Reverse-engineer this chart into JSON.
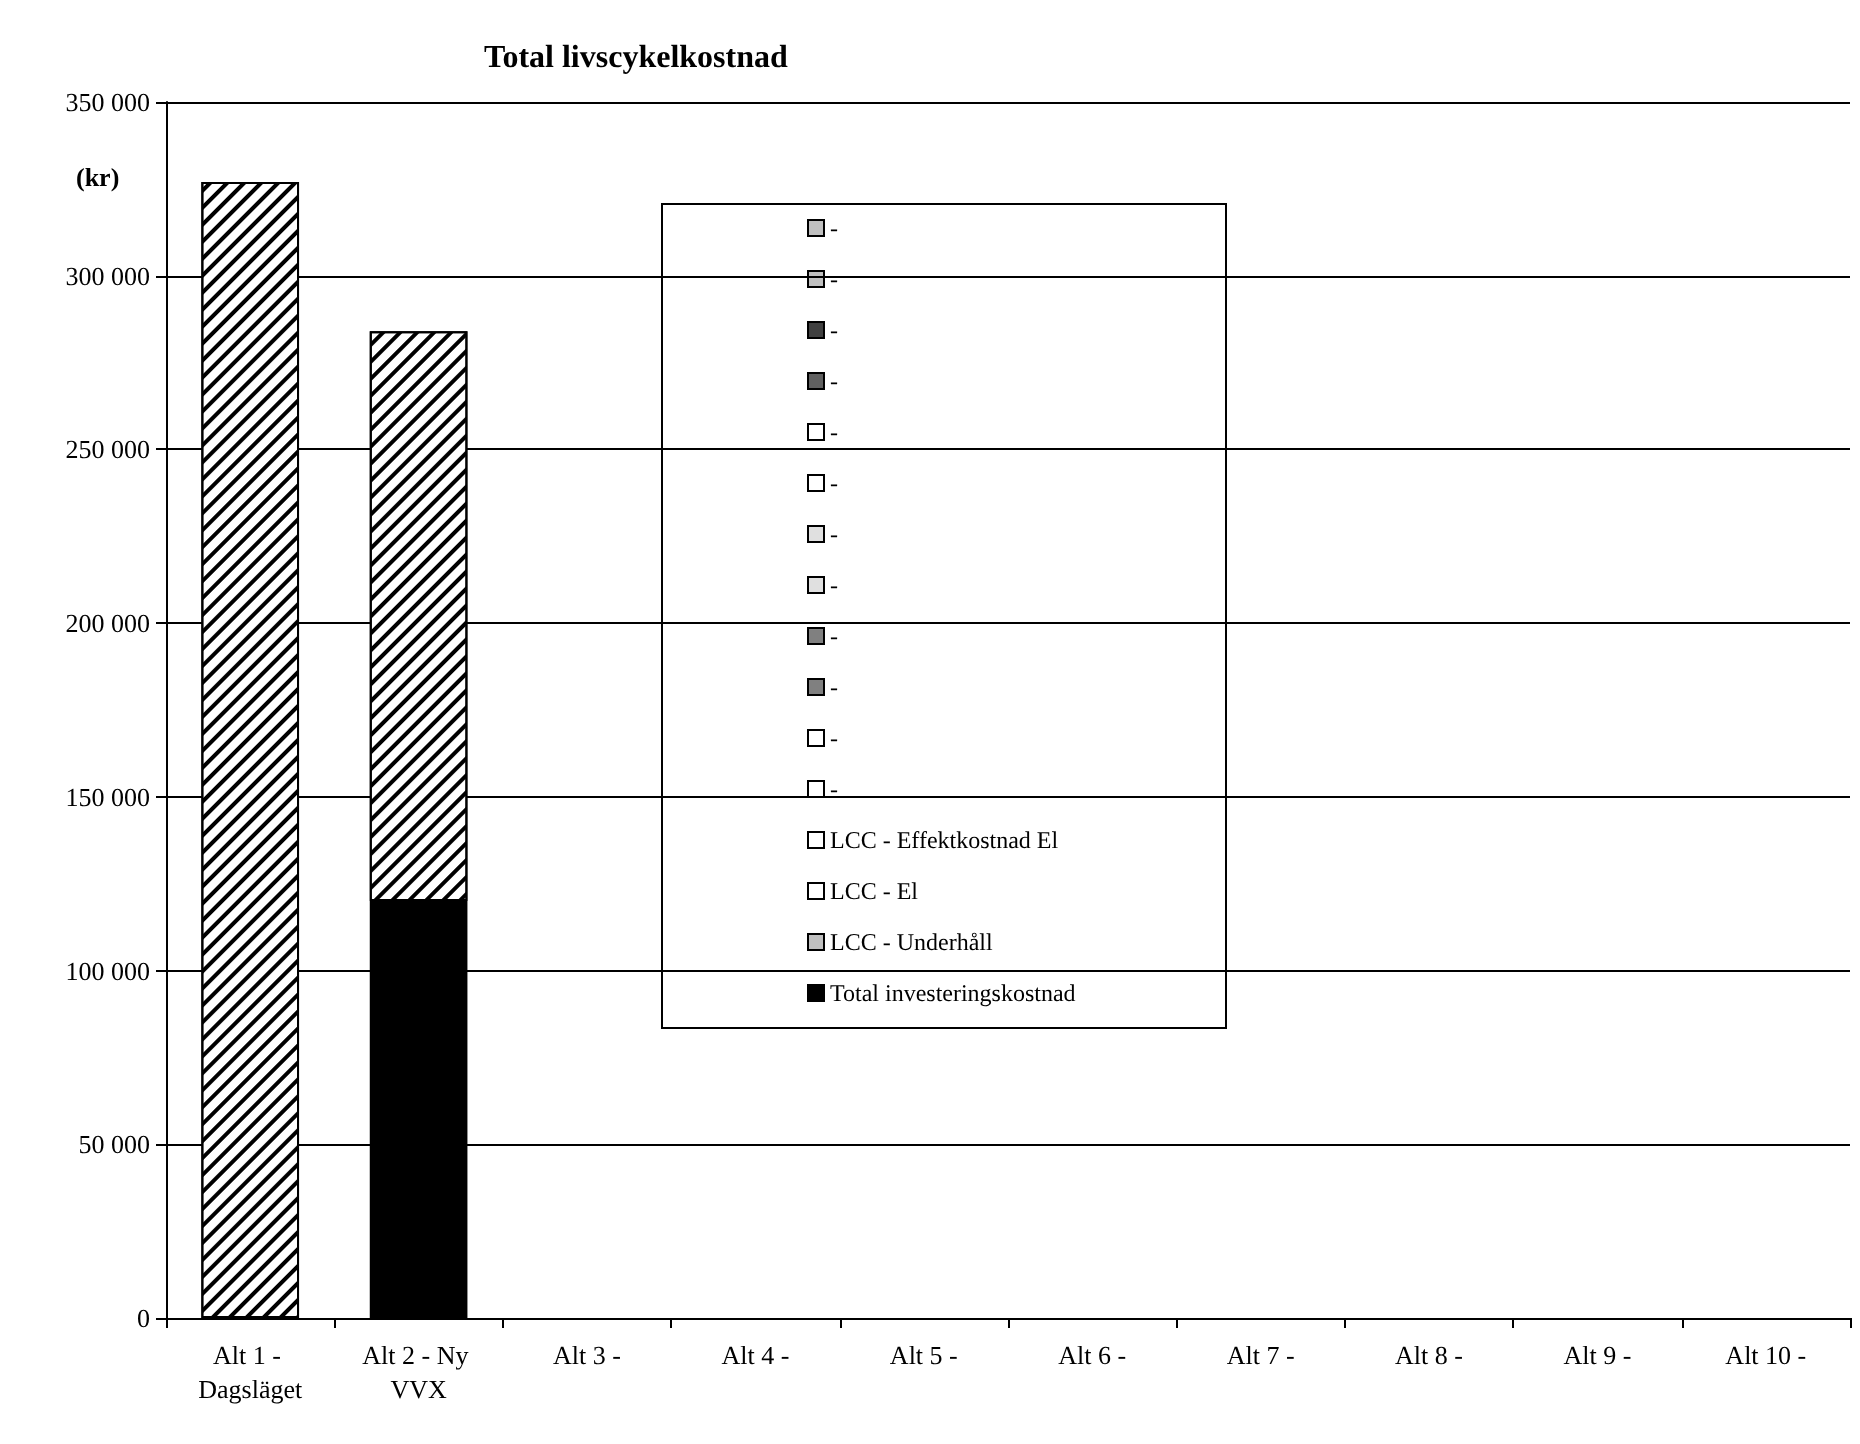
{
  "chart_data": {
    "type": "bar",
    "title": "Total livscykelkostnad",
    "ylabel": "(kr)",
    "stacked": true,
    "categories": [
      "Alt 1 - Dagsläget",
      "Alt 2 - Ny VVX",
      "Alt 3 -",
      "Alt 4 -",
      "Alt 5 -",
      "Alt 6 -",
      "Alt 7 -",
      "Alt 8 -",
      "Alt 9 -",
      "Alt 10 -"
    ],
    "series": [
      {
        "name": "Total investeringskostnad",
        "color": "#000000",
        "values": [
          0,
          120000,
          0,
          0,
          0,
          0,
          0,
          0,
          0,
          0
        ]
      },
      {
        "name": "LCC - Underhåll",
        "color": "#c0c0c0",
        "values": [
          0,
          0,
          0,
          0,
          0,
          0,
          0,
          0,
          0,
          0
        ]
      },
      {
        "name": "LCC - El",
        "color": "#ffffff",
        "values": [
          327000,
          164000,
          0,
          0,
          0,
          0,
          0,
          0,
          0,
          0
        ]
      },
      {
        "name": "LCC - Effektkostnad El",
        "color": "#ffffff",
        "values": [
          0,
          0,
          0,
          0,
          0,
          0,
          0,
          0,
          0,
          0
        ]
      },
      {
        "name": "-",
        "color": "#ffffff",
        "values": [
          0,
          0,
          0,
          0,
          0,
          0,
          0,
          0,
          0,
          0
        ]
      },
      {
        "name": "-",
        "color": "#ffffff",
        "values": [
          0,
          0,
          0,
          0,
          0,
          0,
          0,
          0,
          0,
          0
        ]
      },
      {
        "name": "-",
        "color": "#808080",
        "values": [
          0,
          0,
          0,
          0,
          0,
          0,
          0,
          0,
          0,
          0
        ]
      },
      {
        "name": "-",
        "color": "#808080",
        "values": [
          0,
          0,
          0,
          0,
          0,
          0,
          0,
          0,
          0,
          0
        ]
      },
      {
        "name": "-",
        "color": "#e0e0e0",
        "values": [
          0,
          0,
          0,
          0,
          0,
          0,
          0,
          0,
          0,
          0
        ]
      },
      {
        "name": "-",
        "color": "#e0e0e0",
        "values": [
          0,
          0,
          0,
          0,
          0,
          0,
          0,
          0,
          0,
          0
        ]
      },
      {
        "name": "-",
        "color": "#ffffff",
        "values": [
          0,
          0,
          0,
          0,
          0,
          0,
          0,
          0,
          0,
          0
        ]
      },
      {
        "name": "-",
        "color": "#ffffff",
        "values": [
          0,
          0,
          0,
          0,
          0,
          0,
          0,
          0,
          0,
          0
        ]
      },
      {
        "name": "-",
        "color": "#606060",
        "values": [
          0,
          0,
          0,
          0,
          0,
          0,
          0,
          0,
          0,
          0
        ]
      },
      {
        "name": "-",
        "color": "#404040",
        "values": [
          0,
          0,
          0,
          0,
          0,
          0,
          0,
          0,
          0,
          0
        ]
      },
      {
        "name": "-",
        "color": "#c0c0c0",
        "values": [
          0,
          0,
          0,
          0,
          0,
          0,
          0,
          0,
          0,
          0
        ]
      },
      {
        "name": "-",
        "color": "#c0c0c0",
        "values": [
          0,
          0,
          0,
          0,
          0,
          0,
          0,
          0,
          0,
          0
        ]
      }
    ],
    "ylim": [
      0,
      350000
    ],
    "yticks": [
      {
        "value": 0,
        "label": "0"
      },
      {
        "value": 50000,
        "label": "50 000"
      },
      {
        "value": 100000,
        "label": "100 000"
      },
      {
        "value": 150000,
        "label": "150 000"
      },
      {
        "value": 200000,
        "label": "200 000"
      },
      {
        "value": 250000,
        "label": "250 000"
      },
      {
        "value": 300000,
        "label": "300 000"
      },
      {
        "value": 350000,
        "label": "350 000"
      }
    ],
    "grid": "y",
    "legend": "top"
  }
}
